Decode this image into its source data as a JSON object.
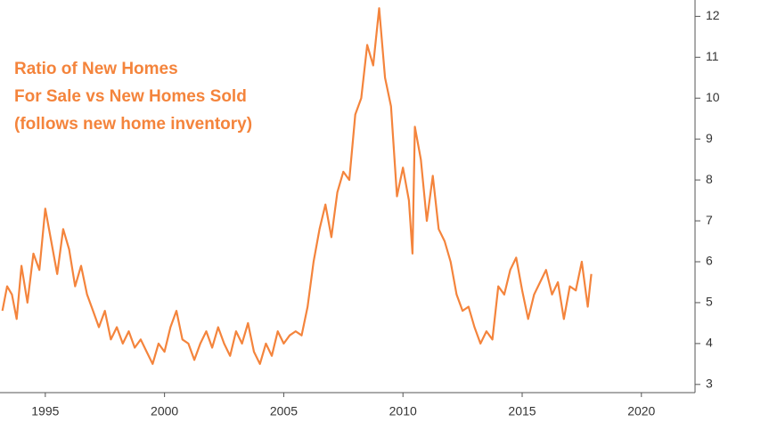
{
  "chart_data": {
    "type": "line",
    "annotation": [
      "Ratio of New Homes",
      "For Sale vs New Homes Sold",
      "(follows new home inventory)"
    ],
    "x": [
      1993.2,
      1993.4,
      1993.6,
      1993.8,
      1994.0,
      1994.25,
      1994.5,
      1994.75,
      1995.0,
      1995.25,
      1995.5,
      1995.75,
      1996.0,
      1996.25,
      1996.5,
      1996.75,
      1997.0,
      1997.25,
      1997.5,
      1997.75,
      1998.0,
      1998.25,
      1998.5,
      1998.75,
      1999.0,
      1999.25,
      1999.5,
      1999.75,
      2000.0,
      2000.25,
      2000.5,
      2000.75,
      2001.0,
      2001.25,
      2001.5,
      2001.75,
      2002.0,
      2002.25,
      2002.5,
      2002.75,
      2003.0,
      2003.25,
      2003.5,
      2003.75,
      2004.0,
      2004.25,
      2004.5,
      2004.75,
      2005.0,
      2005.25,
      2005.5,
      2005.75,
      2006.0,
      2006.25,
      2006.5,
      2006.75,
      2007.0,
      2007.25,
      2007.5,
      2007.75,
      2008.0,
      2008.25,
      2008.5,
      2008.75,
      2009.0,
      2009.25,
      2009.5,
      2009.75,
      2010.0,
      2010.25,
      2010.4,
      2010.5,
      2010.75,
      2011.0,
      2011.25,
      2011.5,
      2011.75,
      2012.0,
      2012.25,
      2012.5,
      2012.75,
      2013.0,
      2013.25,
      2013.5,
      2013.75,
      2014.0,
      2014.25,
      2014.5,
      2014.75,
      2015.0,
      2015.25,
      2015.5,
      2015.75,
      2016.0,
      2016.25,
      2016.5,
      2016.75,
      2017.0,
      2017.25,
      2017.5,
      2017.75,
      2017.9
    ],
    "series": [
      {
        "color": "#f4843c",
        "values": [
          4.8,
          5.4,
          5.2,
          4.6,
          5.9,
          5.0,
          6.2,
          5.8,
          7.3,
          6.5,
          5.7,
          6.8,
          6.3,
          5.4,
          5.9,
          5.2,
          4.8,
          4.4,
          4.8,
          4.1,
          4.4,
          4.0,
          4.3,
          3.9,
          4.1,
          3.8,
          3.5,
          4.0,
          3.8,
          4.4,
          4.8,
          4.1,
          4.0,
          3.6,
          4.0,
          4.3,
          3.9,
          4.4,
          4.0,
          3.7,
          4.3,
          4.0,
          4.5,
          3.8,
          3.5,
          4.0,
          3.7,
          4.3,
          4.0,
          4.2,
          4.3,
          4.2,
          4.9,
          6.0,
          6.8,
          7.4,
          6.6,
          7.7,
          8.2,
          8.0,
          9.6,
          10.0,
          11.3,
          10.8,
          12.2,
          10.5,
          9.8,
          7.6,
          8.3,
          7.5,
          6.2,
          9.3,
          8.5,
          7.0,
          8.1,
          6.8,
          6.5,
          6.0,
          5.2,
          4.8,
          4.9,
          4.4,
          4.0,
          4.3,
          4.1,
          5.4,
          5.2,
          5.8,
          6.1,
          5.3,
          4.6,
          5.2,
          5.5,
          5.8,
          5.2,
          5.5,
          4.6,
          5.4,
          5.3,
          6.0,
          4.9,
          5.7
        ]
      }
    ],
    "xlim": [
      1993.1,
      2022.25
    ],
    "xticks": [
      1995,
      2000,
      2005,
      2010,
      2015,
      2020
    ],
    "ylim": [
      2.8,
      12.4
    ],
    "yticks": [
      3,
      4,
      5,
      6,
      7,
      8,
      9,
      10,
      11,
      12
    ]
  }
}
